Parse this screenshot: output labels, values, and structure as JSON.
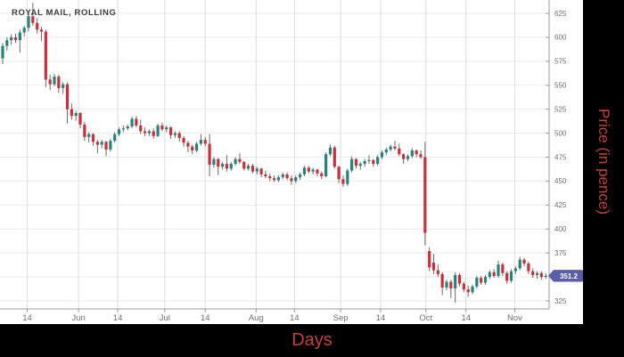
{
  "title": "ROYAL MAIL, ROLLING",
  "x_axis_title": "Days",
  "y_axis_title": "Price (in pence)",
  "last_price_label": "351.2",
  "colors": {
    "up": "#26837c",
    "down": "#c9303c",
    "wick": "#6a6a6a",
    "badge": "#5b5ea6",
    "badge_text": "#ffffff",
    "axis": "#9b9b9b",
    "tick_text": "#6e6e6e",
    "grid_h": "#ebebeb",
    "grid_v": "#dedede",
    "title_text": "#3b3b3b",
    "axis_title_text": "#c2423a",
    "plot_bg": "#ffffff",
    "frame_bg": "#000000"
  },
  "chart_data": {
    "type": "candlestick",
    "title": "ROYAL MAIL, ROLLING",
    "xlabel": "Days",
    "ylabel": "Price (in pence)",
    "ylim": [
      318,
      640
    ],
    "grid": true,
    "legend": "none",
    "last_price": 351.2,
    "y_tick_labels": [
      625,
      600,
      575,
      550,
      525,
      500,
      475,
      450,
      425,
      400,
      375,
      325
    ],
    "y_gridlines": [
      625,
      600,
      575,
      550,
      525,
      500,
      475,
      450,
      425,
      400,
      375,
      350,
      325
    ],
    "x_ticks": [
      {
        "label": "14",
        "pos": 5.7
      },
      {
        "label": "Jun",
        "pos": 17.6
      },
      {
        "label": "14",
        "pos": 26.7
      },
      {
        "label": "Jul",
        "pos": 37.6
      },
      {
        "label": "14",
        "pos": 47.0
      },
      {
        "label": "Aug",
        "pos": 58.8
      },
      {
        "label": "14",
        "pos": 67.7
      },
      {
        "label": "Sep",
        "pos": 78.4
      },
      {
        "label": "14",
        "pos": 87.7
      },
      {
        "label": "Oct",
        "pos": 98.2
      },
      {
        "label": "14",
        "pos": 107.5
      },
      {
        "label": "Nov",
        "pos": 118.8
      }
    ],
    "candles_format": [
      "open",
      "high",
      "low",
      "close"
    ],
    "candles": [
      [
        578,
        594,
        572,
        591
      ],
      [
        591,
        600,
        586,
        597
      ],
      [
        597,
        603,
        592,
        600
      ],
      [
        600,
        604,
        594,
        597
      ],
      [
        597,
        608,
        584,
        605
      ],
      [
        605,
        612,
        601,
        610
      ],
      [
        610,
        625,
        606,
        622
      ],
      [
        622,
        636,
        612,
        615
      ],
      [
        615,
        620,
        604,
        608
      ],
      [
        608,
        611,
        596,
        606
      ],
      [
        606,
        608,
        548,
        556
      ],
      [
        556,
        561,
        545,
        551
      ],
      [
        551,
        562,
        549,
        559
      ],
      [
        559,
        561,
        542,
        547
      ],
      [
        547,
        553,
        541,
        551
      ],
      [
        551,
        553,
        510,
        525
      ],
      [
        525,
        531,
        514,
        518
      ],
      [
        518,
        523,
        513,
        521
      ],
      [
        521,
        522,
        505,
        509
      ],
      [
        509,
        512,
        492,
        496
      ],
      [
        496,
        501,
        490,
        499
      ],
      [
        499,
        500,
        487,
        491
      ],
      [
        491,
        493,
        479,
        488
      ],
      [
        488,
        493,
        484,
        491
      ],
      [
        491,
        492,
        476,
        483
      ],
      [
        483,
        494,
        481,
        492
      ],
      [
        492,
        501,
        490,
        499
      ],
      [
        499,
        506,
        497,
        504
      ],
      [
        504,
        508,
        501,
        505
      ],
      [
        505,
        509,
        503,
        507
      ],
      [
        507,
        517,
        505,
        515
      ],
      [
        515,
        518,
        506,
        508
      ],
      [
        508,
        514,
        499,
        502
      ],
      [
        502,
        506,
        497,
        500
      ],
      [
        500,
        504,
        497,
        502
      ],
      [
        502,
        505,
        494,
        497
      ],
      [
        497,
        510,
        496,
        508
      ],
      [
        508,
        511,
        502,
        504
      ],
      [
        504,
        508,
        501,
        506
      ],
      [
        506,
        507,
        494,
        498
      ],
      [
        498,
        502,
        495,
        500
      ],
      [
        500,
        502,
        491,
        495
      ],
      [
        495,
        497,
        486,
        490
      ],
      [
        490,
        492,
        480,
        486
      ],
      [
        486,
        488,
        478,
        482
      ],
      [
        482,
        491,
        480,
        489
      ],
      [
        489,
        499,
        487,
        493
      ],
      [
        493,
        496,
        486,
        489
      ],
      [
        489,
        499,
        455,
        467
      ],
      [
        467,
        475,
        464,
        473
      ],
      [
        473,
        474,
        456,
        465
      ],
      [
        465,
        470,
        462,
        468
      ],
      [
        468,
        477,
        460,
        463
      ],
      [
        463,
        470,
        461,
        468
      ],
      [
        468,
        475,
        466,
        473
      ],
      [
        473,
        479,
        468,
        470
      ],
      [
        470,
        471,
        461,
        463
      ],
      [
        463,
        468,
        461,
        466
      ],
      [
        466,
        468,
        458,
        460
      ],
      [
        460,
        465,
        457,
        463
      ],
      [
        463,
        464,
        454,
        457
      ],
      [
        457,
        461,
        453,
        455
      ],
      [
        455,
        458,
        450,
        453
      ],
      [
        453,
        456,
        449,
        451
      ],
      [
        451,
        456,
        449,
        454
      ],
      [
        454,
        459,
        452,
        457
      ],
      [
        457,
        459,
        451,
        453
      ],
      [
        453,
        456,
        446,
        450
      ],
      [
        450,
        456,
        448,
        454
      ],
      [
        454,
        459,
        451,
        457
      ],
      [
        457,
        466,
        455,
        464
      ],
      [
        464,
        466,
        458,
        460
      ],
      [
        460,
        464,
        457,
        462
      ],
      [
        462,
        463,
        455,
        458
      ],
      [
        458,
        460,
        452,
        455
      ],
      [
        455,
        480,
        454,
        478
      ],
      [
        478,
        488,
        476,
        485
      ],
      [
        485,
        487,
        463,
        465
      ],
      [
        465,
        466,
        448,
        452
      ],
      [
        452,
        456,
        444,
        447
      ],
      [
        447,
        463,
        445,
        461
      ],
      [
        461,
        476,
        459,
        473
      ],
      [
        473,
        474,
        463,
        466
      ],
      [
        466,
        470,
        462,
        468
      ],
      [
        468,
        473,
        465,
        471
      ],
      [
        471,
        477,
        468,
        472
      ],
      [
        472,
        473,
        465,
        468
      ],
      [
        468,
        477,
        466,
        475
      ],
      [
        475,
        482,
        473,
        480
      ],
      [
        480,
        485,
        477,
        483
      ],
      [
        483,
        488,
        481,
        486
      ],
      [
        486,
        492,
        482,
        484
      ],
      [
        484,
        489,
        476,
        478
      ],
      [
        478,
        479,
        468,
        473
      ],
      [
        473,
        478,
        471,
        476
      ],
      [
        476,
        484,
        474,
        482
      ],
      [
        482,
        483,
        475,
        478
      ],
      [
        478,
        482,
        473,
        475
      ],
      [
        475,
        491,
        383,
        396
      ],
      [
        377,
        381,
        356,
        360
      ],
      [
        365,
        374,
        353,
        357
      ],
      [
        357,
        363,
        350,
        353
      ],
      [
        353,
        355,
        331,
        339
      ],
      [
        339,
        347,
        336,
        345
      ],
      [
        345,
        347,
        328,
        338
      ],
      [
        338,
        355,
        323,
        352
      ],
      [
        352,
        354,
        340,
        343
      ],
      [
        343,
        345,
        334,
        337
      ],
      [
        337,
        341,
        329,
        334
      ],
      [
        334,
        342,
        332,
        340
      ],
      [
        340,
        351,
        338,
        349
      ],
      [
        349,
        351,
        342,
        344
      ],
      [
        344,
        352,
        342,
        350
      ],
      [
        350,
        357,
        348,
        355
      ],
      [
        355,
        358,
        349,
        351
      ],
      [
        351,
        367,
        349,
        363
      ],
      [
        363,
        365,
        351,
        354
      ],
      [
        354,
        356,
        343,
        346
      ],
      [
        346,
        358,
        344,
        356
      ],
      [
        356,
        361,
        353,
        359
      ],
      [
        359,
        371,
        357,
        368
      ],
      [
        368,
        370,
        361,
        364
      ],
      [
        364,
        366,
        353,
        356
      ],
      [
        356,
        359,
        349,
        352
      ],
      [
        352,
        356,
        348,
        354
      ],
      [
        354,
        356,
        347,
        350
      ],
      [
        350,
        354,
        348,
        351.2
      ]
    ]
  }
}
